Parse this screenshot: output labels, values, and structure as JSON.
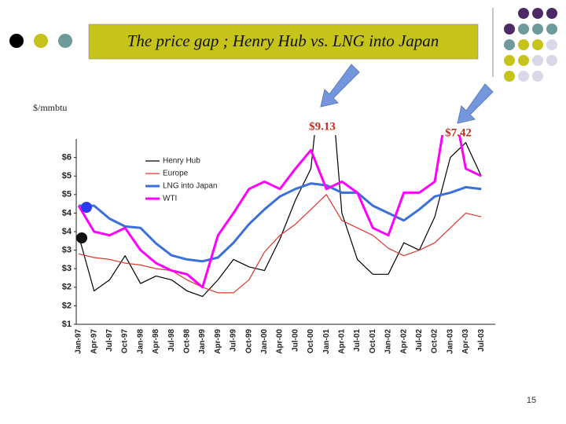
{
  "slide": {
    "title": "The price gap ; Henry Hub vs. LNG into Japan",
    "page_number": "15"
  },
  "chart_data": {
    "type": "line",
    "ylabel": "$/mmbtu",
    "annotations": [
      "$9.13",
      "$7.42"
    ],
    "categories": [
      "Jan-97",
      "Apr-97",
      "Jul-97",
      "Oct-97",
      "Jan-98",
      "Apr-98",
      "Jul-98",
      "Oct-98",
      "Jan-99",
      "Apr-99",
      "Jul-99",
      "Oct-99",
      "Jan-00",
      "Apr-00",
      "Jul-00",
      "Oct-00",
      "Jan-01",
      "Apr-01",
      "Jul-01",
      "Oct-01",
      "Jan-02",
      "Apr-02",
      "Jul-02",
      "Oct-02",
      "Jan-03",
      "Apr-03",
      "Jul-03"
    ],
    "series": [
      {
        "name": "Henry Hub",
        "color": "#000000",
        "width": 1.2,
        "values": [
          3.4,
          1.9,
          2.2,
          2.85,
          2.1,
          2.3,
          2.2,
          1.9,
          1.75,
          2.2,
          2.75,
          2.55,
          2.45,
          3.3,
          4.35,
          5.2,
          9.13,
          4.0,
          2.75,
          2.35,
          2.35,
          3.2,
          3.0,
          3.9,
          5.5,
          5.9,
          5.0
        ]
      },
      {
        "name": "Europe",
        "color": "#e0352b",
        "width": 1.2,
        "values": [
          2.9,
          2.8,
          2.75,
          2.65,
          2.6,
          2.5,
          2.45,
          2.2,
          2.0,
          1.85,
          1.85,
          2.2,
          2.95,
          3.4,
          3.7,
          4.1,
          4.5,
          3.8,
          3.6,
          3.4,
          3.05,
          2.85,
          3.0,
          3.2,
          3.6,
          4.0,
          3.9
        ]
      },
      {
        "name": "LNG into Japan",
        "color": "#3b6fd9",
        "width": 3,
        "values": [
          4.2,
          4.2,
          3.85,
          3.64,
          3.6,
          3.18,
          2.86,
          2.75,
          2.7,
          2.8,
          3.2,
          3.7,
          4.1,
          4.45,
          4.65,
          4.8,
          4.75,
          4.55,
          4.55,
          4.2,
          4.0,
          3.8,
          4.1,
          4.45,
          4.55,
          4.7,
          4.65
        ]
      },
      {
        "name": "WTI",
        "color": "#ff00ff",
        "width": 3,
        "values": [
          4.2,
          3.5,
          3.4,
          3.6,
          3.0,
          2.65,
          2.45,
          2.35,
          2.0,
          3.4,
          4.0,
          4.65,
          4.85,
          4.65,
          5.2,
          5.7,
          4.65,
          4.85,
          4.55,
          3.6,
          3.4,
          4.55,
          4.55,
          4.85,
          7.42,
          5.2,
          5.0
        ]
      }
    ],
    "ylim": [
      1,
      6
    ],
    "yticks": [
      {
        "value": 1,
        "label": "$1"
      },
      {
        "value": 1.5,
        "label": "$2"
      },
      {
        "value": 2,
        "label": "$2"
      },
      {
        "value": 2.5,
        "label": "$3"
      },
      {
        "value": 3,
        "label": "$3"
      },
      {
        "value": 3.5,
        "label": "$4"
      },
      {
        "value": 4,
        "label": "$4"
      },
      {
        "value": 4.5,
        "label": "$5"
      },
      {
        "value": 5,
        "label": "$5"
      },
      {
        "value": 5.5,
        "label": "$6"
      }
    ],
    "grid": false,
    "legend": "upper left"
  }
}
